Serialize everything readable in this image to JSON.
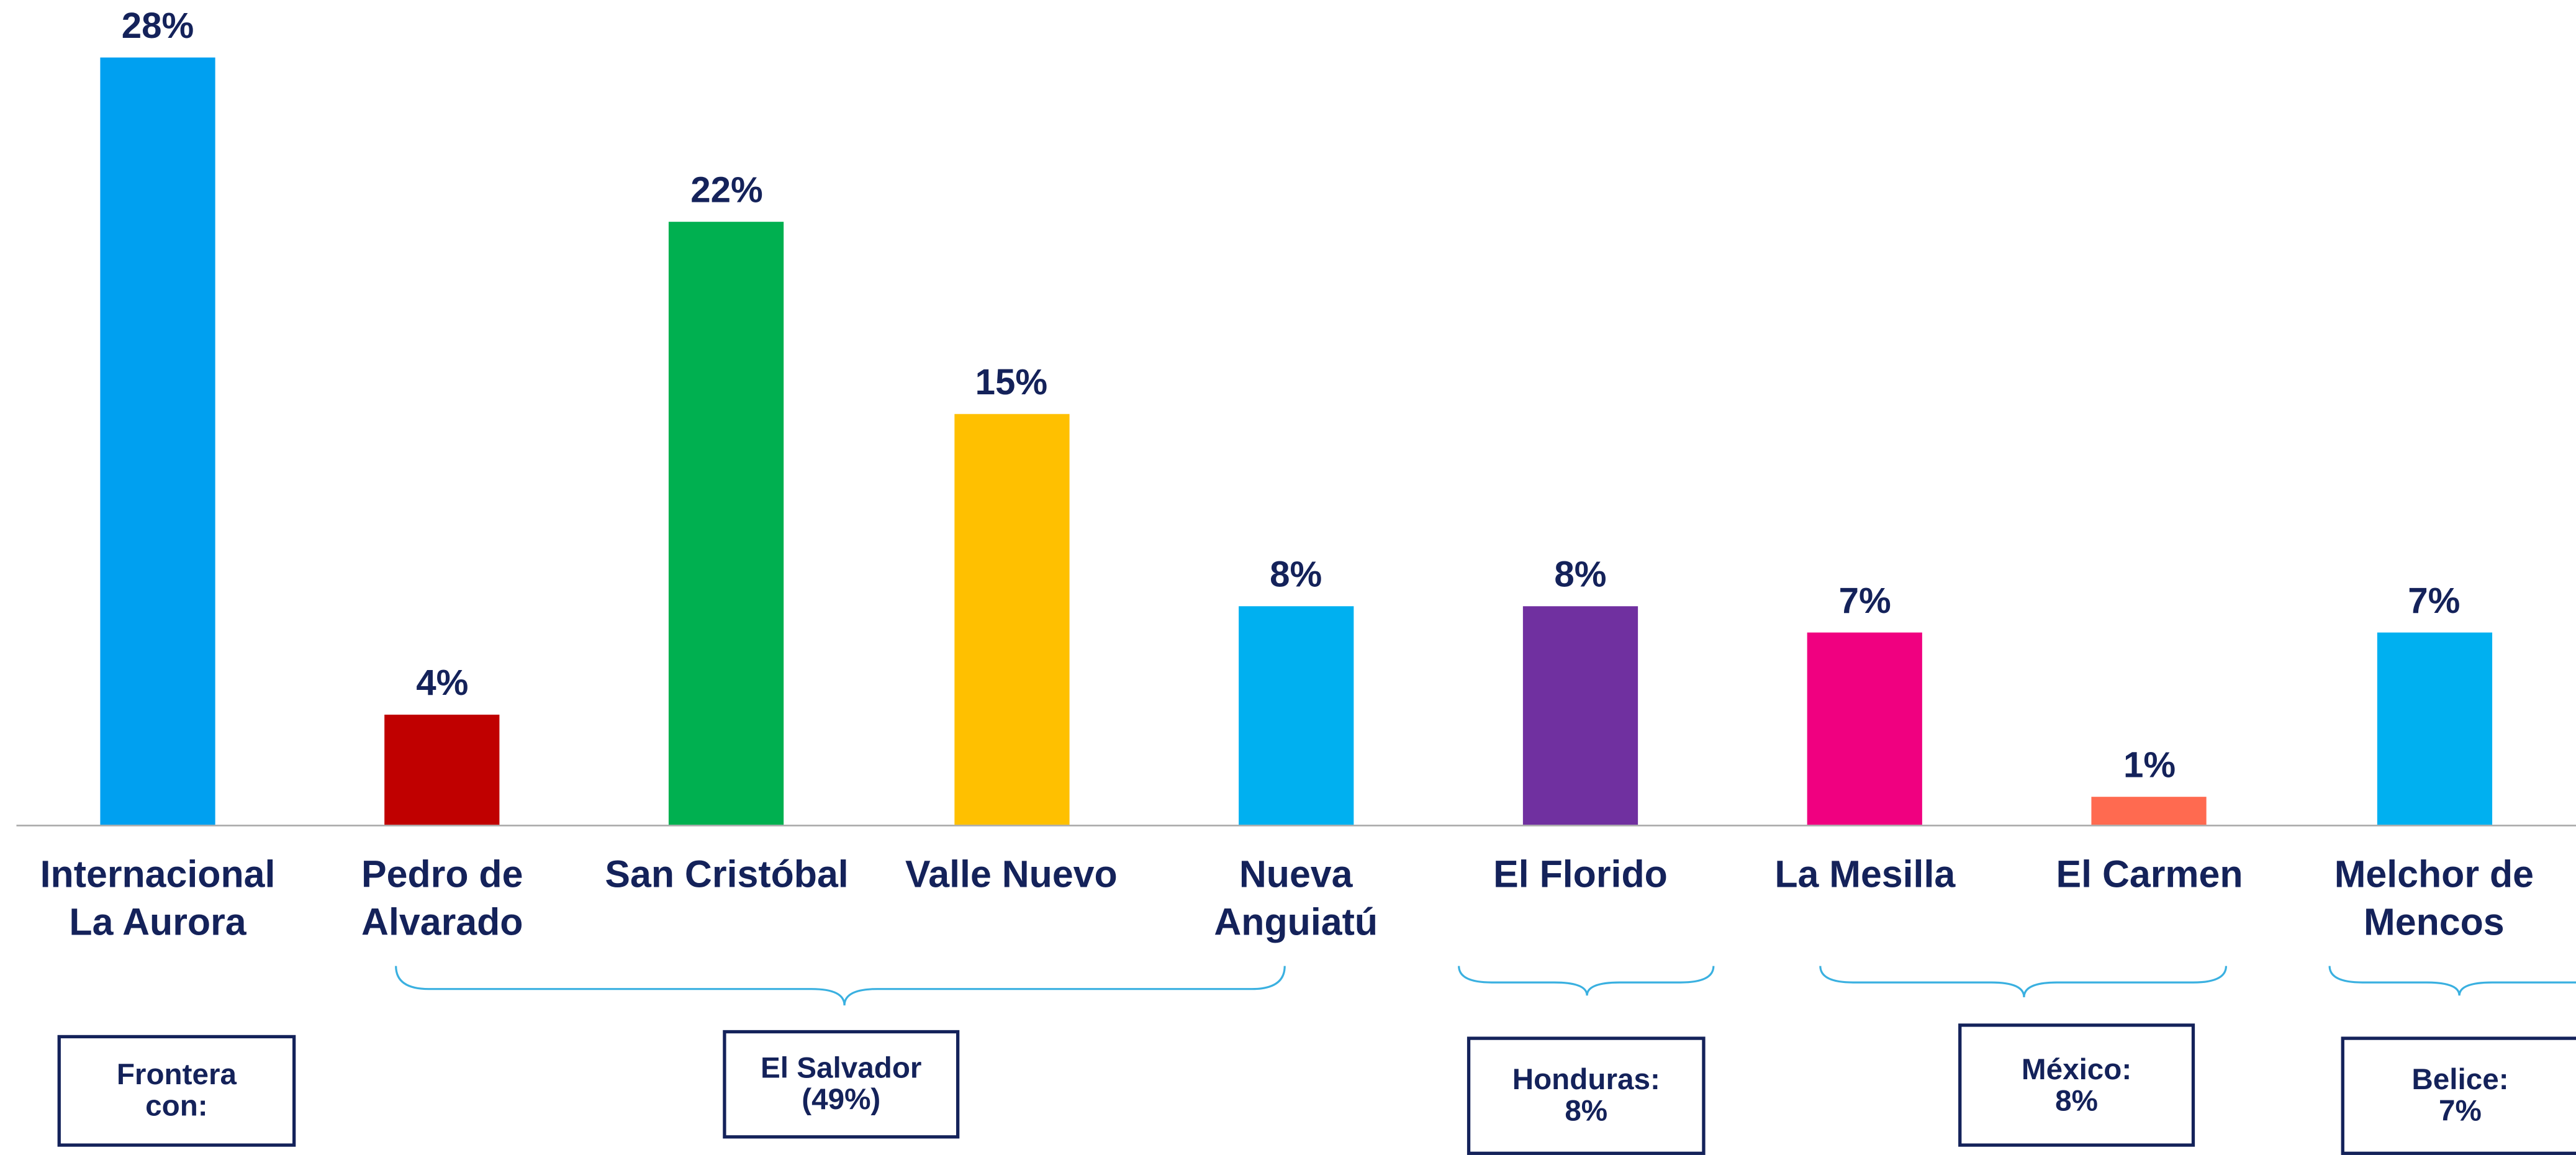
{
  "chart_data": {
    "type": "bar",
    "categories": [
      "Internacional\nLa Aurora",
      "Pedro de\nAlvarado",
      "San Cristóbal",
      "Valle Nuevo",
      "Nueva\nAnguiatú",
      "El Florido",
      "La Mesilla",
      "El Carmen",
      "Melchor de\nMencos"
    ],
    "values": [
      28,
      4,
      22,
      15,
      8,
      8,
      7,
      1,
      7
    ],
    "value_labels": [
      "28%",
      "4%",
      "22%",
      "15%",
      "8%",
      "8%",
      "7%",
      "1%",
      "7%"
    ],
    "colors": [
      "#00a0f0",
      "#c00000",
      "#00b050",
      "#ffc000",
      "#00b0f0",
      "#7030a0",
      "#f00080",
      "#ff6a50",
      "#00b0f0"
    ],
    "annotations": [
      "Frontera\ncon:",
      "El Salvador\n(49%)",
      "Honduras:\n8%",
      "México:\n8%",
      "Belice:\n7%"
    ]
  }
}
